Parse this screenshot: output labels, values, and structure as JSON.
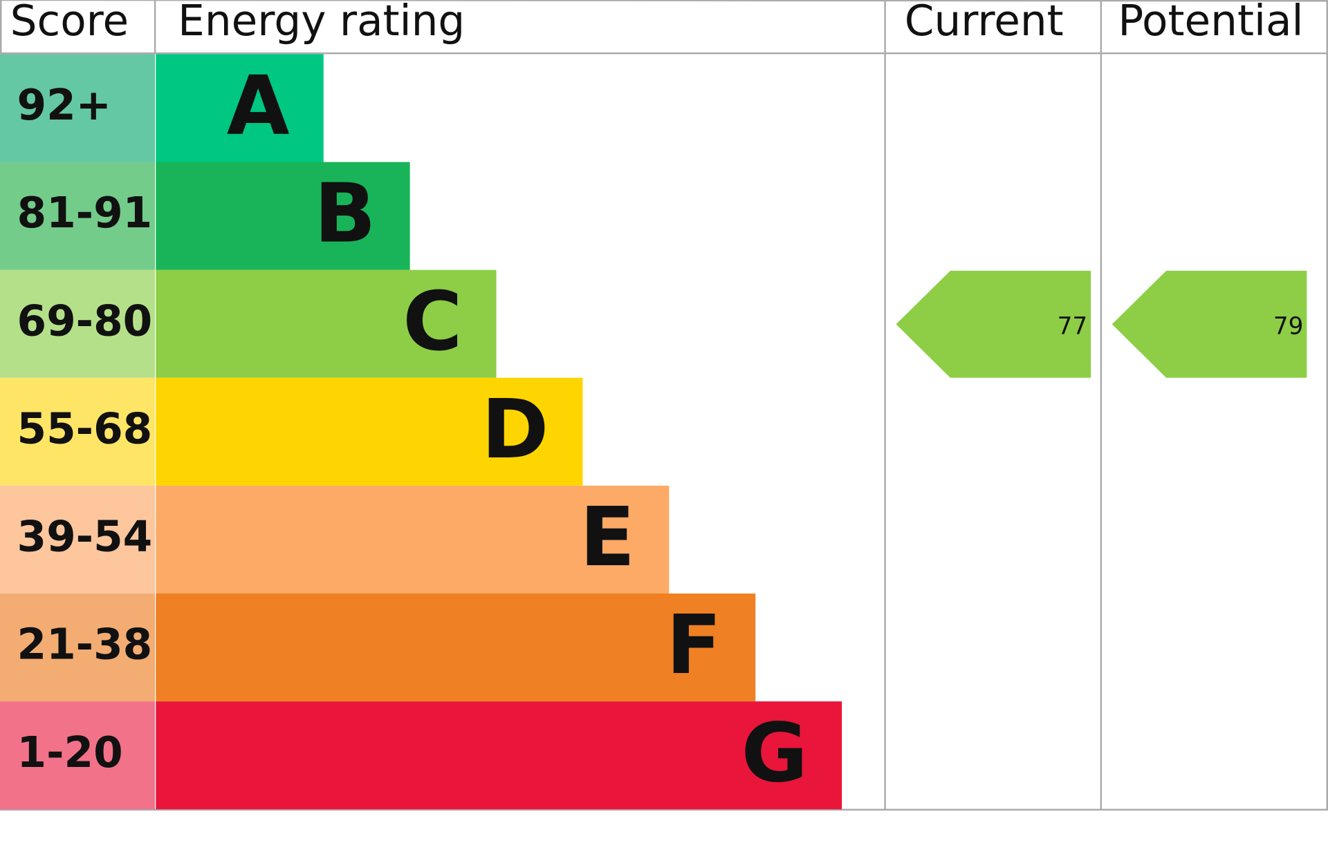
{
  "headers": {
    "score": "Score",
    "rating": "Energy rating",
    "current": "Current",
    "potential": "Potential"
  },
  "bands": [
    {
      "score": "92+",
      "letter": "A",
      "color": "#00c781",
      "score_color": "#64c8a4"
    },
    {
      "score": "81-91",
      "letter": "B",
      "color": "#19b459",
      "score_color": "#74cc8b"
    },
    {
      "score": "69-80",
      "letter": "C",
      "color": "#8dce46",
      "score_color": "#b4e089"
    },
    {
      "score": "55-68",
      "letter": "D",
      "color": "#ffd500",
      "score_color": "#ffe566"
    },
    {
      "score": "39-54",
      "letter": "E",
      "color": "#fcaa65",
      "score_color": "#fdc69d"
    },
    {
      "score": "21-38",
      "letter": "F",
      "color": "#ef8023",
      "score_color": "#f3ac72"
    },
    {
      "score": "1-20",
      "letter": "G",
      "color": "#e9153b",
      "score_color": "#f2728a"
    }
  ],
  "current": 77,
  "potential": 79
}
